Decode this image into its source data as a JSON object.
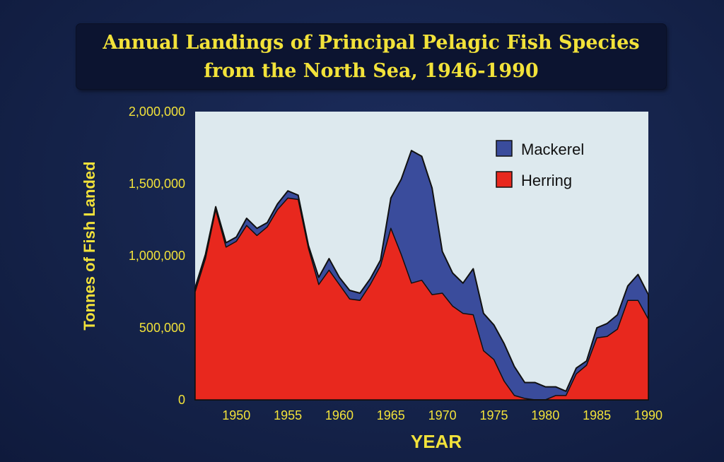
{
  "title_line1": "Annual Landings of Principal Pelagic Fish Species",
  "title_line2": "from the North Sea, 1946-1990",
  "colors": {
    "background": "#15234a",
    "plot_background": "#dde9ee",
    "mackerel": "#3a4c9c",
    "herring": "#e8281e",
    "text": "#f2e23a"
  },
  "chart_data": {
    "type": "area",
    "stacked": true,
    "title": "Annual Landings of Principal Pelagic Fish Species from the North Sea, 1946-1990",
    "xlabel": "YEAR",
    "ylabel": "Tonnes of Fish Landed",
    "xlim": [
      1946,
      1990
    ],
    "ylim": [
      0,
      2000000
    ],
    "grid": false,
    "legend_position": "top-right",
    "x_ticks": [
      "1950",
      "1955",
      "1960",
      "1965",
      "1970",
      "1975",
      "1980",
      "1985",
      "1990"
    ],
    "y_ticks": [
      "0",
      "500,000",
      "1,000,000",
      "1,500,000",
      "2,000,000"
    ],
    "x": [
      1946,
      1947,
      1948,
      1949,
      1950,
      1951,
      1952,
      1953,
      1954,
      1955,
      1956,
      1957,
      1958,
      1959,
      1960,
      1961,
      1962,
      1963,
      1964,
      1965,
      1966,
      1967,
      1968,
      1969,
      1970,
      1971,
      1972,
      1973,
      1974,
      1975,
      1976,
      1977,
      1978,
      1979,
      1980,
      1981,
      1982,
      1983,
      1984,
      1985,
      1986,
      1987,
      1988,
      1989,
      1990
    ],
    "series": [
      {
        "name": "Herring",
        "color": "#e8281e",
        "values": [
          750000,
          980000,
          1320000,
          1060000,
          1100000,
          1210000,
          1140000,
          1200000,
          1320000,
          1400000,
          1390000,
          1050000,
          800000,
          900000,
          800000,
          700000,
          690000,
          800000,
          930000,
          1190000,
          1010000,
          810000,
          830000,
          730000,
          740000,
          650000,
          600000,
          590000,
          340000,
          280000,
          130000,
          30000,
          10000,
          0,
          0,
          30000,
          30000,
          180000,
          240000,
          430000,
          440000,
          490000,
          690000,
          690000,
          560000
        ]
      },
      {
        "name": "Mackerel",
        "color": "#3a4c9c",
        "values": [
          30000,
          30000,
          20000,
          30000,
          30000,
          50000,
          50000,
          30000,
          40000,
          50000,
          30000,
          20000,
          50000,
          80000,
          50000,
          60000,
          50000,
          40000,
          40000,
          210000,
          520000,
          920000,
          860000,
          740000,
          290000,
          230000,
          210000,
          320000,
          260000,
          240000,
          260000,
          200000,
          110000,
          120000,
          90000,
          60000,
          30000,
          40000,
          30000,
          70000,
          90000,
          100000,
          100000,
          180000,
          170000
        ]
      }
    ]
  }
}
